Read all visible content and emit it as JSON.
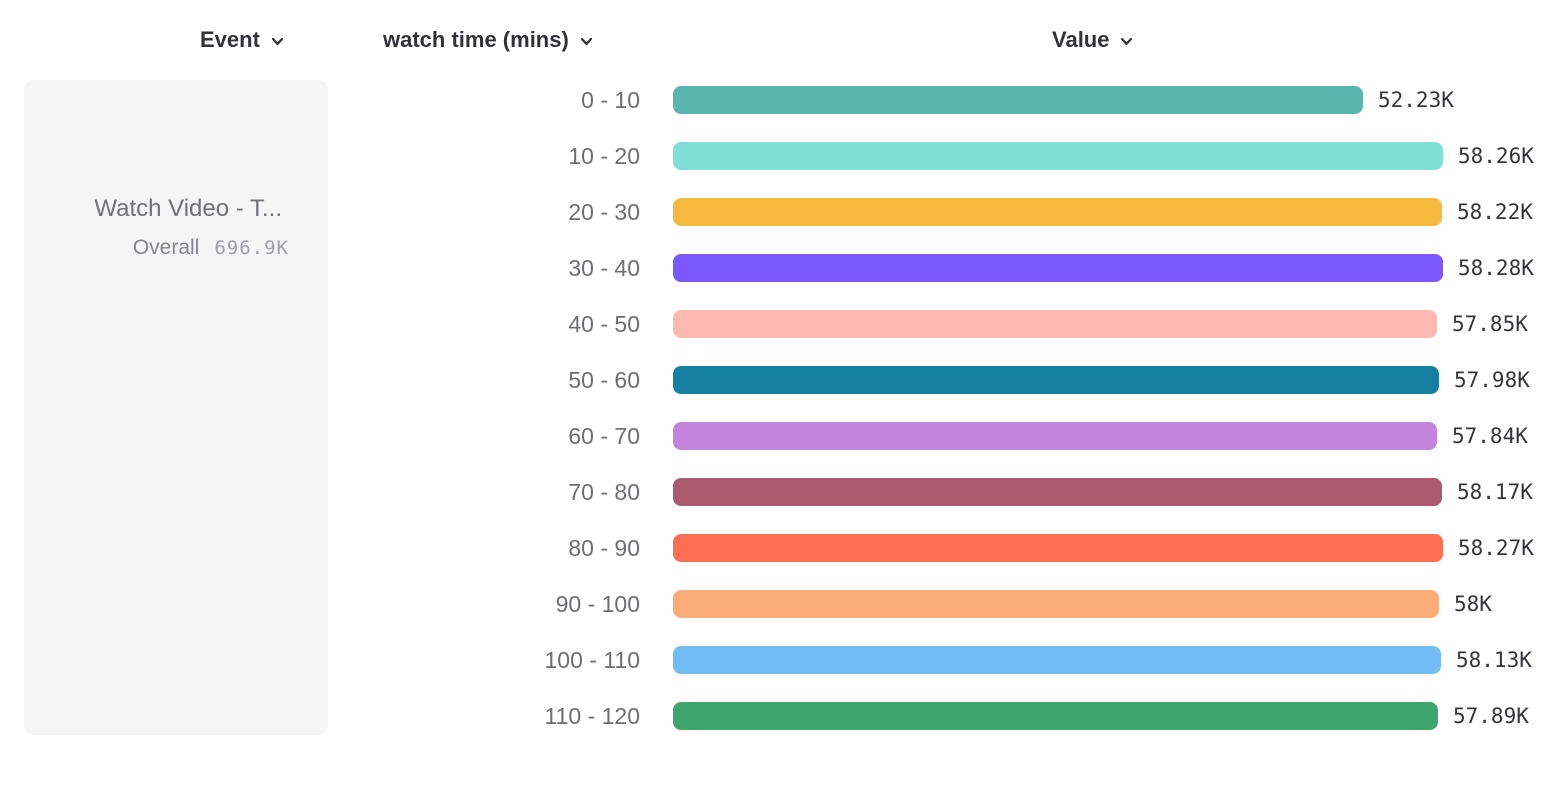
{
  "columns": {
    "event": {
      "label": "Event",
      "icon": "chevron-down-icon"
    },
    "watch_time": {
      "label": "watch time (mins)",
      "icon": "chevron-down-icon"
    },
    "value": {
      "label": "Value",
      "icon": "chevron-down-icon"
    }
  },
  "event_card": {
    "title": "Watch Video - T...",
    "overall_label": "Overall",
    "overall_value": "696.9K"
  },
  "chart_data": {
    "type": "bar",
    "orientation": "horizontal",
    "title": "",
    "xlabel": "Value",
    "ylabel": "watch time (mins)",
    "grid": false,
    "xlim": [
      0,
      58280
    ],
    "value_label_position": "end-of-bar",
    "categories": [
      "0 - 10",
      "10 - 20",
      "20 - 30",
      "30 - 40",
      "40 - 50",
      "50 - 60",
      "60 - 70",
      "70 - 80",
      "80 - 90",
      "90 - 100",
      "100 - 110",
      "110 - 120"
    ],
    "values": [
      52230,
      58260,
      58220,
      58280,
      57850,
      57980,
      57840,
      58170,
      58270,
      58000,
      58130,
      57890
    ],
    "value_labels": [
      "52.23K",
      "58.26K",
      "58.22K",
      "58.28K",
      "57.85K",
      "57.98K",
      "57.84K",
      "58.17K",
      "58.27K",
      "58K",
      "58.13K",
      "57.89K"
    ],
    "bar_colors": [
      "#5BB5AF",
      "#81E0D5",
      "#F5B93E",
      "#7A58FB",
      "#FFB9B0",
      "#15809F",
      "#C584DB",
      "#AC5B6E",
      "#FC6F53",
      "#FBAD79",
      "#70BCF3",
      "#3EA56E"
    ]
  }
}
